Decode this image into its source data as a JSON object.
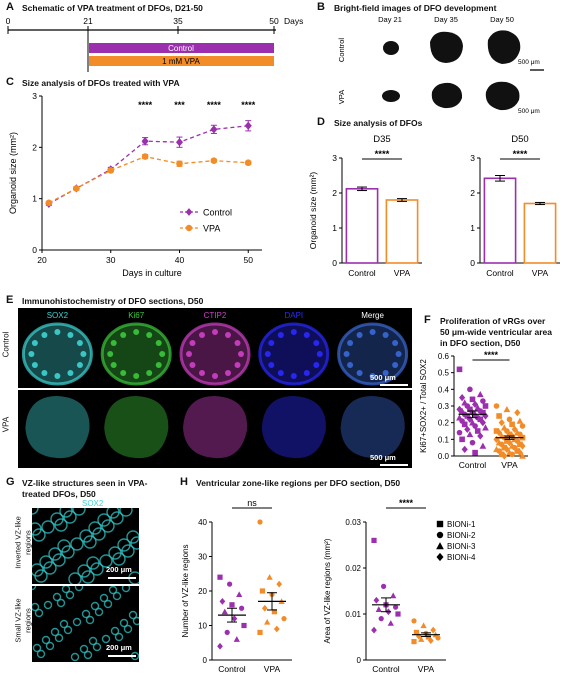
{
  "panels": {
    "A": {
      "letter": "A",
      "title": "Schematic of VPA treatment of DFOs, D21-50"
    },
    "B": {
      "letter": "B",
      "title": "Bright-field images of DFO development"
    },
    "C": {
      "letter": "C",
      "title": "Size analysis of DFOs treated with VPA"
    },
    "D": {
      "letter": "D",
      "title": "Size analysis of DFOs"
    },
    "E": {
      "letter": "E",
      "title": "Immunohistochemistry of DFO sections, D50"
    },
    "F": {
      "letter": "F",
      "title_lines": [
        "Proliferation of vRGs over",
        "50 μm-wide ventricular area",
        "in DFO section, D50"
      ]
    },
    "G": {
      "letter": "G",
      "title_lines": [
        "VZ-like structures seen in VPA-",
        "treated DFOs, D50"
      ]
    },
    "H": {
      "letter": "H",
      "title": "Ventricular zone-like regions per DFO section, D50"
    }
  },
  "timeline": {
    "ticks": [
      "0",
      "21",
      "35",
      "50"
    ],
    "unit": "Days",
    "bars": [
      {
        "label": "Control",
        "color": "#9b2fae"
      },
      {
        "label": "1 mM VPA",
        "color": "#f28c28"
      }
    ]
  },
  "brightfield": {
    "days": [
      "Day 21",
      "Day 35",
      "Day 50"
    ],
    "rows": [
      "Control",
      "VPA"
    ],
    "scale": "500 μm"
  },
  "ihc": {
    "channels": [
      {
        "label": "SOX2",
        "color": "#3fd4d4"
      },
      {
        "label": "Ki67",
        "color": "#3cc83c"
      },
      {
        "label": "CTIP2",
        "color": "#d040c8"
      },
      {
        "label": "DAPI",
        "color": "#2a2aff"
      },
      {
        "label": "Merge",
        "color": "#ffffff"
      }
    ],
    "rows": [
      "Control",
      "VPA"
    ],
    "scale": "500 μm"
  },
  "gpanel": {
    "channel": "SOX2",
    "rows": [
      {
        "label_lines": [
          "Inverted VZ-like",
          "regions"
        ],
        "scale": "200 μm"
      },
      {
        "label_lines": [
          "Small VZ-like",
          "regions"
        ],
        "scale": "200 μm"
      }
    ]
  },
  "chart_data": [
    {
      "id": "C",
      "type": "line",
      "xlabel": "Days in culture",
      "ylabel": "Organoid size (mm²)",
      "x": [
        21,
        25,
        30,
        35,
        40,
        45,
        50
      ],
      "xlim": [
        20,
        52
      ],
      "ylim": [
        0,
        3
      ],
      "xticks": [
        "20",
        "30",
        "40",
        "50"
      ],
      "yticks": [
        "0",
        "1",
        "2",
        "3"
      ],
      "series": [
        {
          "name": "Control",
          "color": "#9b2fae",
          "values": [
            0.9,
            1.2,
            1.57,
            2.12,
            2.1,
            2.35,
            2.42
          ],
          "err": [
            0.03,
            0.03,
            0.04,
            0.07,
            0.1,
            0.08,
            0.1
          ]
        },
        {
          "name": "VPA",
          "color": "#f28c28",
          "values": [
            0.92,
            1.2,
            1.55,
            1.82,
            1.68,
            1.74,
            1.7
          ],
          "err": [
            0.02,
            0.02,
            0.03,
            0.04,
            0.05,
            0.03,
            0.03
          ]
        }
      ],
      "significance": [
        {
          "x": 35,
          "label": "****"
        },
        {
          "x": 40,
          "label": "***"
        },
        {
          "x": 45,
          "label": "****"
        },
        {
          "x": 50,
          "label": "****"
        }
      ],
      "legend": "bottom-right"
    },
    {
      "id": "D35",
      "type": "bar",
      "title": "D35",
      "ylabel": "Organoid size (mm²)",
      "categories": [
        "Control",
        "VPA"
      ],
      "values": [
        2.12,
        1.8
      ],
      "err": [
        0.05,
        0.04
      ],
      "colors": [
        "#9b2fae",
        "#f28c28"
      ],
      "ylim": [
        0,
        3
      ],
      "yticks": [
        "0",
        "1",
        "2",
        "3"
      ],
      "significance": "****"
    },
    {
      "id": "D50",
      "type": "bar",
      "title": "D50",
      "categories": [
        "Control",
        "VPA"
      ],
      "values": [
        2.42,
        1.7
      ],
      "err": [
        0.08,
        0.03
      ],
      "colors": [
        "#9b2fae",
        "#f28c28"
      ],
      "ylim": [
        0,
        3
      ],
      "yticks": [
        "0",
        "1",
        "2",
        "3"
      ],
      "significance": "****"
    },
    {
      "id": "F",
      "type": "scatter",
      "ylabel": "Ki67+SOX2+ / Total SOX2",
      "categories": [
        "Control",
        "VPA"
      ],
      "means": [
        0.25,
        0.11
      ],
      "sem": [
        0.02,
        0.01
      ],
      "colors": [
        "#9b2fae",
        "#f28c28"
      ],
      "ylim": [
        0,
        0.6
      ],
      "yticks": [
        "0.0",
        "0.1",
        "0.2",
        "0.3",
        "0.4",
        "0.5",
        "0.6"
      ],
      "significance": "****",
      "legend": [
        "BIONi-1",
        "BIONi-2",
        "BIONi-3",
        "BIONi-4"
      ],
      "groups": [
        [
          0.52,
          0.4,
          0.37,
          0.35,
          0.34,
          0.33,
          0.32,
          0.31,
          0.3,
          0.3,
          0.29,
          0.28,
          0.28,
          0.27,
          0.27,
          0.26,
          0.26,
          0.25,
          0.25,
          0.24,
          0.24,
          0.23,
          0.23,
          0.22,
          0.22,
          0.21,
          0.2,
          0.2,
          0.19,
          0.18,
          0.17,
          0.16,
          0.15,
          0.14,
          0.13,
          0.12,
          0.1,
          0.08,
          0.06,
          0.04,
          0.02
        ],
        [
          0.3,
          0.28,
          0.26,
          0.24,
          0.22,
          0.21,
          0.2,
          0.19,
          0.18,
          0.17,
          0.16,
          0.15,
          0.15,
          0.14,
          0.14,
          0.13,
          0.13,
          0.12,
          0.12,
          0.11,
          0.11,
          0.1,
          0.1,
          0.09,
          0.09,
          0.08,
          0.08,
          0.07,
          0.07,
          0.06,
          0.06,
          0.05,
          0.05,
          0.04,
          0.04,
          0.03,
          0.03,
          0.02,
          0.02,
          0.01,
          0.01,
          0.0,
          0.0
        ]
      ]
    },
    {
      "id": "H1",
      "type": "scatter",
      "ylabel": "Number of VZ-like regions",
      "categories": [
        "Control",
        "VPA"
      ],
      "means": [
        13,
        17
      ],
      "sem": [
        2,
        2.5
      ],
      "colors": [
        "#9b2fae",
        "#f28c28"
      ],
      "ylim": [
        0,
        40
      ],
      "yticks": [
        "0",
        "10",
        "20",
        "30",
        "40"
      ],
      "significance": "ns",
      "groups": [
        [
          24,
          22,
          19,
          17,
          16,
          15,
          14,
          12,
          10,
          8,
          6,
          4
        ],
        [
          40,
          24,
          22,
          20,
          19,
          17,
          15,
          14,
          12,
          11,
          9,
          8
        ]
      ]
    },
    {
      "id": "H2",
      "type": "scatter",
      "ylabel": "Area of VZ-like regions (mm²)",
      "categories": [
        "Control",
        "VPA"
      ],
      "means": [
        0.012,
        0.0055
      ],
      "sem": [
        0.0015,
        0.0004
      ],
      "colors": [
        "#9b2fae",
        "#f28c28"
      ],
      "ylim": [
        0,
        0.03
      ],
      "yticks": [
        "0",
        "0.01",
        "0.02",
        "0.03"
      ],
      "significance": "****",
      "legend": [
        "BIONi-1",
        "BIONi-2",
        "BIONi-3",
        "BIONi-4"
      ],
      "groups": [
        [
          0.026,
          0.016,
          0.014,
          0.013,
          0.012,
          0.0115,
          0.011,
          0.0105,
          0.01,
          0.009,
          0.008,
          0.0065
        ],
        [
          0.0085,
          0.0075,
          0.0065,
          0.006,
          0.0058,
          0.0055,
          0.0052,
          0.005,
          0.0048,
          0.0045,
          0.0042,
          0.004
        ]
      ]
    }
  ]
}
